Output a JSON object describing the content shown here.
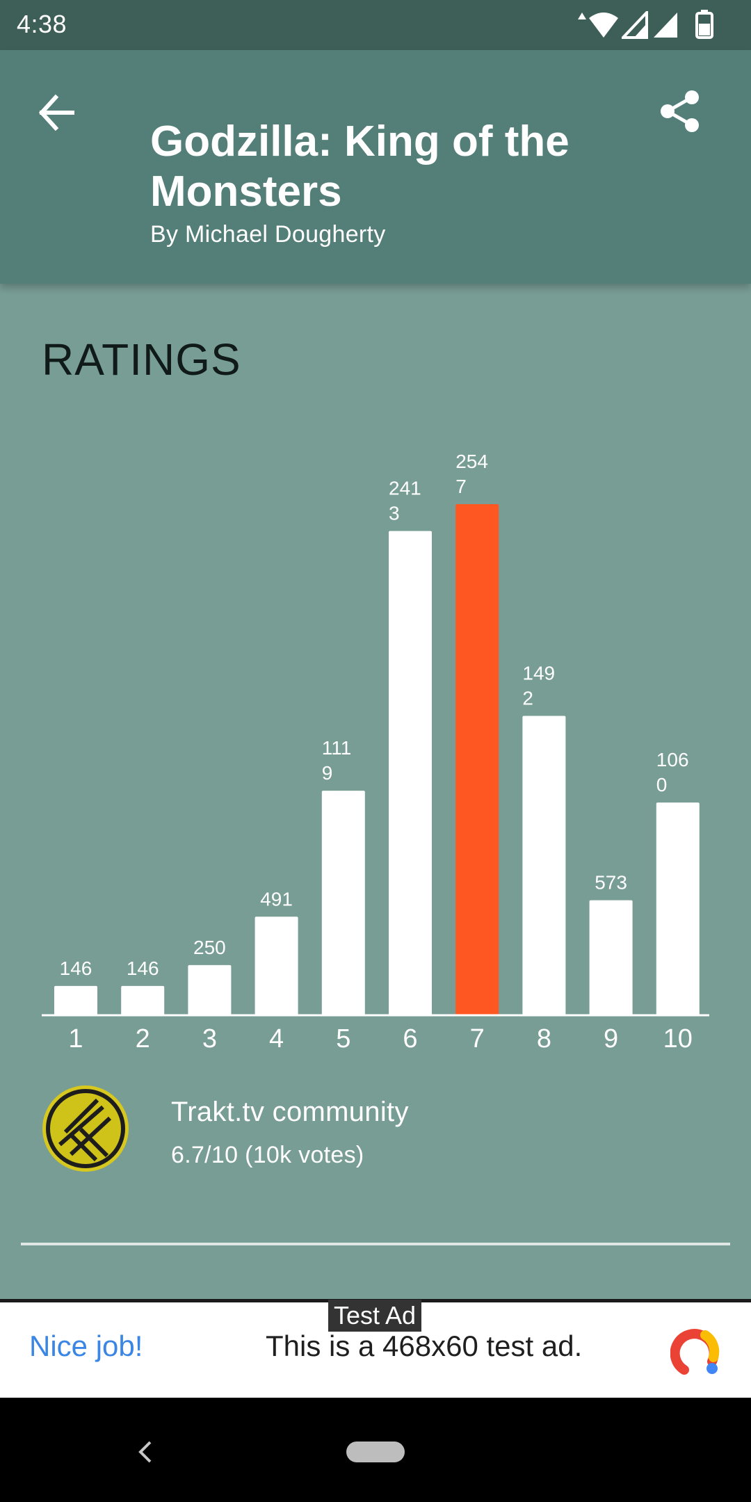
{
  "status_bar": {
    "time": "4:38",
    "icons": [
      "data-arrows-icon",
      "wifi-icon",
      "signal-icon",
      "signal-icon",
      "battery-icon"
    ]
  },
  "header": {
    "title": "Godzilla: King of the Monsters",
    "subtitle": "By Michael Dougherty",
    "back_icon": "back-arrow-icon",
    "share_icon": "share-icon",
    "background": "#537f78"
  },
  "ratings": {
    "section_title": "RATINGS",
    "highlight_color": "#ff5722",
    "bar_color": "#ffffff",
    "chart_data": {
      "type": "bar",
      "categories": [
        "1",
        "2",
        "3",
        "4",
        "5",
        "6",
        "7",
        "8",
        "9",
        "10"
      ],
      "values": [
        146,
        146,
        250,
        491,
        1119,
        2413,
        2547,
        1492,
        573,
        1060
      ],
      "highlighted_category": "7",
      "ylim": [
        0,
        2547
      ],
      "grid": false,
      "legend": "none"
    },
    "source": {
      "name": "Trakt.tv community",
      "score": "6.7/10 (10k votes)",
      "logo_icon": "trakt-logo-icon"
    }
  },
  "ad": {
    "tag": "Test Ad",
    "headline": "Nice job!",
    "body": "This is a 468x60 test ad.",
    "logo_icon": "admob-logo-icon"
  },
  "nav": {
    "back_icon": "nav-back-icon",
    "home_icon": "home-pill-icon"
  }
}
